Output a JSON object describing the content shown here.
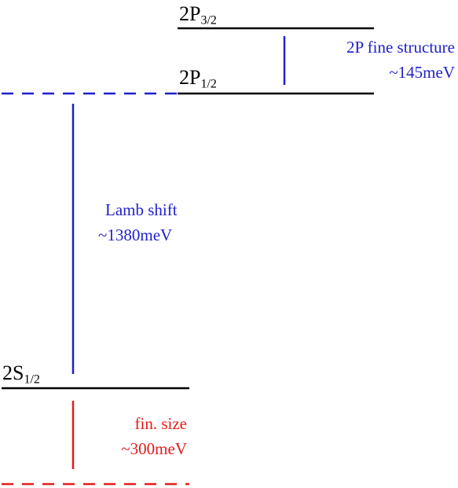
{
  "colors": {
    "level_line": "#000000",
    "blue": "#1f1fcc",
    "red": "#e41a1a"
  },
  "levels": {
    "p32": {
      "main": "2P",
      "sub": "3/2"
    },
    "p12": {
      "main": "2P",
      "sub": "1/2"
    },
    "s12": {
      "main": "2S",
      "sub": "1/2"
    }
  },
  "annotations": {
    "fine_structure": {
      "line1": "2P fine structure",
      "line2": "~145meV"
    },
    "lamb_shift": {
      "line1": "Lamb shift",
      "line2": "~1380meV"
    },
    "finite_size": {
      "line1": "fin. size",
      "line2": "~300meV"
    }
  }
}
